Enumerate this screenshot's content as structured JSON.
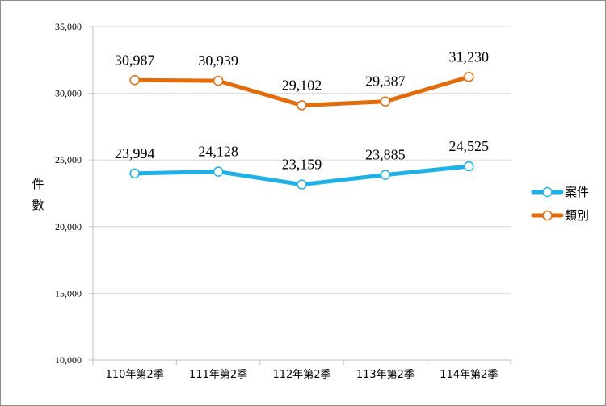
{
  "chart_data": {
    "type": "line",
    "categories": [
      "110年第2季",
      "111年第2季",
      "112年第2季",
      "113年第2季",
      "114年第2季"
    ],
    "series": [
      {
        "name": "案件",
        "values": [
          23994,
          24128,
          23159,
          23885,
          24525
        ],
        "labels": [
          "23,994",
          "24,128",
          "23,159",
          "23,885",
          "24,525"
        ],
        "color": "#1eb1e8"
      },
      {
        "name": "類別",
        "values": [
          30987,
          30939,
          29102,
          29387,
          31230
        ],
        "labels": [
          "30,987",
          "30,939",
          "29,102",
          "29,387",
          "31,230"
        ],
        "color": "#e36c0a"
      }
    ],
    "ylabel": "件數",
    "ylim": [
      10000,
      35000
    ],
    "yticks": [
      10000,
      15000,
      20000,
      25000,
      30000,
      35000
    ],
    "ytick_labels": [
      "10,000",
      "15,000",
      "20,000",
      "25,000",
      "30,000",
      "35,000"
    ],
    "grid": true,
    "legend_position": "right"
  }
}
